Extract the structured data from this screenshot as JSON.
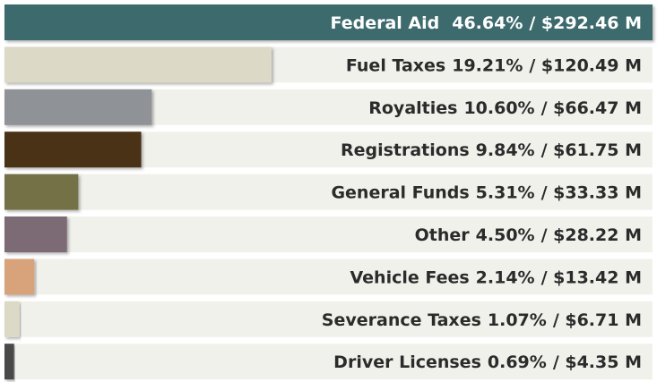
{
  "chart_data": {
    "type": "bar",
    "categories": [
      "Federal Aid",
      "Fuel Taxes",
      "Royalties",
      "Registrations",
      "General Funds",
      "Other",
      "Vehicle Fees",
      "Severance Taxes",
      "Driver Licenses"
    ],
    "values": [
      46.64,
      19.21,
      10.6,
      9.84,
      5.31,
      4.5,
      2.14,
      1.07,
      0.69
    ],
    "value_labels": [
      "46.64%",
      "19.21%",
      "10.60%",
      "9.84%",
      "5.31%",
      "4.50%",
      "2.14%",
      "1.07%",
      "0.69%"
    ],
    "amount_labels": [
      "/ $292.46 M",
      "/ $120.49 M",
      "/ $66.47 M",
      "/ $61.75 M",
      "/ $33.33 M",
      "/ $28.22 M",
      "/ $13.42 M",
      "/ $6.71 M",
      "/ $4.35 M"
    ],
    "colors": [
      "#3c6a6d",
      "#dcdac7",
      "#8f9297",
      "#4a3316",
      "#737145",
      "#7b6a75",
      "#d8a37a",
      "#dcdac7",
      "#4a4a4a"
    ]
  }
}
